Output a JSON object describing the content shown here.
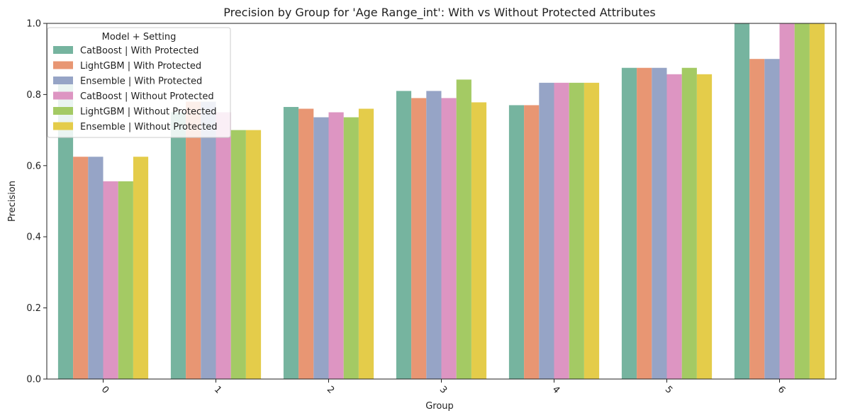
{
  "chart_data": {
    "type": "bar",
    "title": "Precision by Group for 'Age Range_int': With vs Without Protected Attributes",
    "xlabel": "Group",
    "ylabel": "Precision",
    "ylim": [
      0,
      1.0
    ],
    "yticks": [
      "0.0",
      "0.2",
      "0.4",
      "0.6",
      "0.8",
      "1.0"
    ],
    "categories": [
      "0",
      "1",
      "2",
      "3",
      "4",
      "5",
      "6"
    ],
    "legend": {
      "title": "Model + Setting",
      "placement": "top-left"
    },
    "grid": false,
    "series": [
      {
        "name": "CatBoost | With Protected",
        "color": "#76b49f",
        "values": [
          0.83,
          0.75,
          0.765,
          0.81,
          0.77,
          0.875,
          1.0
        ]
      },
      {
        "name": "LightGBM | With Protected",
        "color": "#e89673",
        "values": [
          0.625,
          0.78,
          0.76,
          0.79,
          0.77,
          0.875,
          0.9
        ]
      },
      {
        "name": "Ensemble | With Protected",
        "color": "#96a4c6",
        "values": [
          0.625,
          0.78,
          0.736,
          0.81,
          0.833,
          0.875,
          0.9
        ]
      },
      {
        "name": "CatBoost | Without Protected",
        "color": "#dd95c2",
        "values": [
          0.556,
          0.75,
          0.75,
          0.79,
          0.833,
          0.857,
          1.0
        ]
      },
      {
        "name": "LightGBM | Without Protected",
        "color": "#a4ca64",
        "values": [
          0.556,
          0.7,
          0.736,
          0.842,
          0.833,
          0.875,
          1.0
        ]
      },
      {
        "name": "Ensemble | Without Protected",
        "color": "#e4cc4a",
        "values": [
          0.625,
          0.7,
          0.76,
          0.778,
          0.833,
          0.857,
          1.0
        ]
      }
    ]
  }
}
